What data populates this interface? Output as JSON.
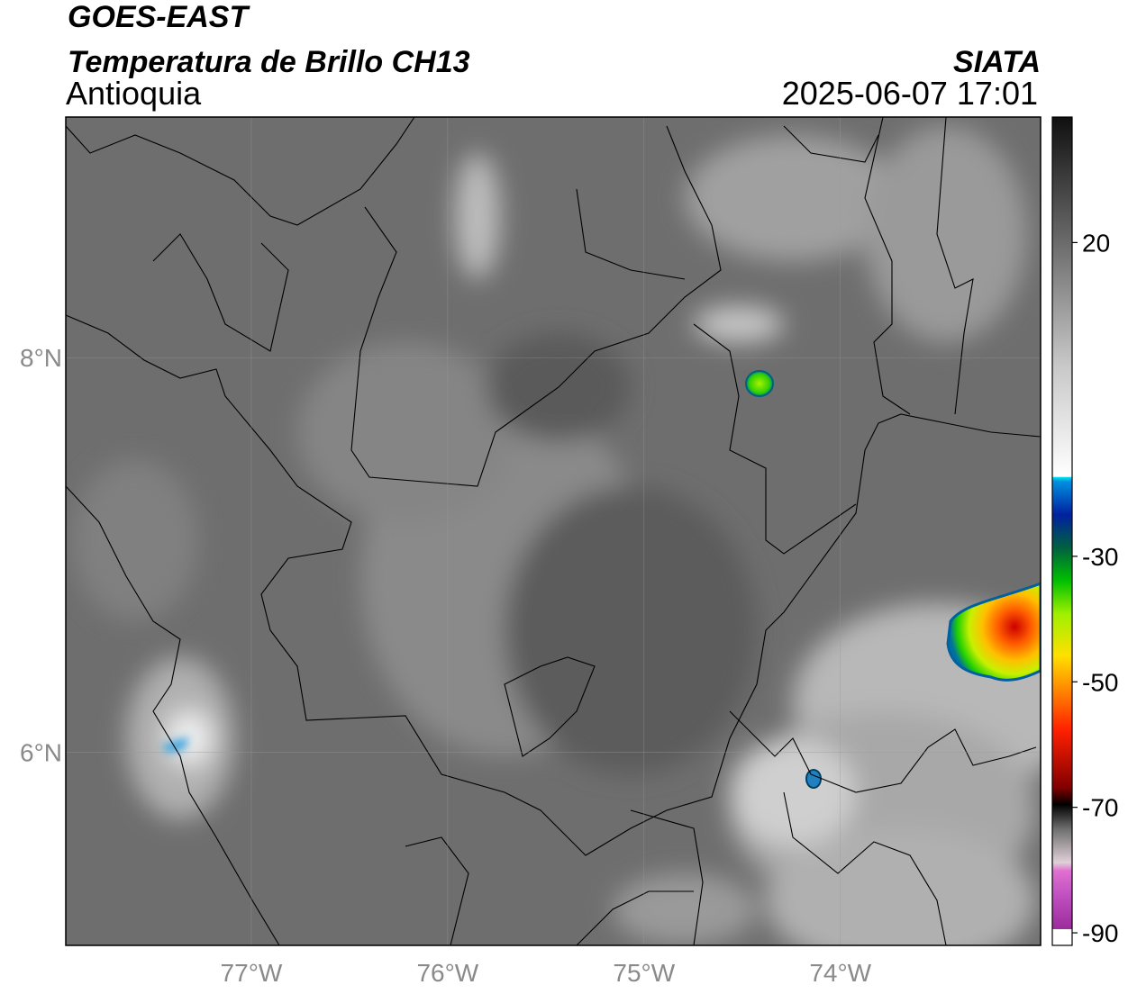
{
  "header": {
    "title": "GOES-EAST",
    "subtitle": "Temperatura de Brillo CH13",
    "region": "Antioquia",
    "source": "SIATA",
    "datetime": "2025-06-07 17:01"
  },
  "map": {
    "latlim": [
      5.02,
      9.22
    ],
    "lonlim": [
      -77.945,
      -72.98
    ],
    "latticks": [
      {
        "value": 8,
        "label": "8°N"
      },
      {
        "value": 6,
        "label": "6°N"
      }
    ],
    "lonticks": [
      {
        "value": -77,
        "label": "77°W"
      },
      {
        "value": -76,
        "label": "76°W"
      },
      {
        "value": -75,
        "label": "75°W"
      },
      {
        "value": -74,
        "label": "74°W"
      }
    ],
    "grid": true
  },
  "colorbar": {
    "lim": [
      -92,
      40
    ],
    "ticks": [
      20,
      -30,
      -50,
      -70,
      -90
    ]
  }
}
